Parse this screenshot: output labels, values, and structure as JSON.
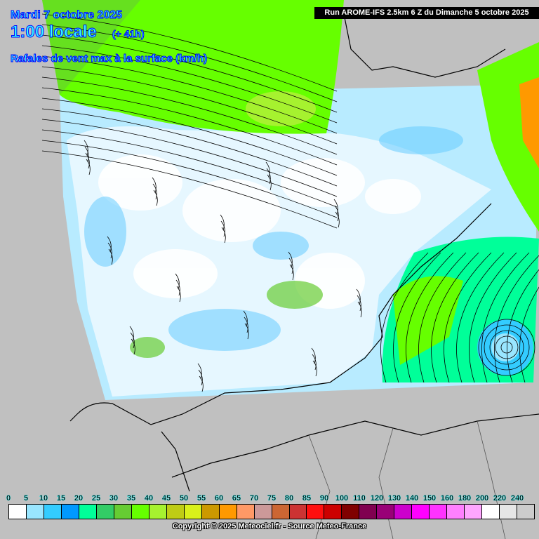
{
  "header": {
    "date": "Mardi 7 octobre 2025",
    "time": "1:00 locale",
    "lead": "(+ 41h)",
    "parameter": "Rafales de vent max à la surface (km/h)",
    "run": "Run AROME-IFS 2.5km 6 Z du Dimanche 5 octobre 2025"
  },
  "legend": {
    "labels": [
      "0",
      "5",
      "10",
      "15",
      "20",
      "25",
      "30",
      "35",
      "40",
      "45",
      "50",
      "55",
      "60",
      "65",
      "70",
      "75",
      "80",
      "85",
      "90",
      "100",
      "110",
      "120",
      "130",
      "140",
      "150",
      "160",
      "180",
      "200",
      "220",
      "240"
    ],
    "colors": [
      "#ffffff",
      "#99e6ff",
      "#33ccff",
      "#0099ff",
      "#00ff99",
      "#33cc66",
      "#66cc33",
      "#66ff00",
      "#a6f22f",
      "#bfcc14",
      "#d9f01a",
      "#cc9900",
      "#ff9900",
      "#ff9966",
      "#cc9999",
      "#cc6633",
      "#cc3333",
      "#ff0f0f",
      "#cc0000",
      "#800000",
      "#800050",
      "#990077",
      "#cc00cc",
      "#ff00ff",
      "#ff33ff",
      "#ff80ff",
      "#ffa6ff",
      "#ffffff",
      "#e6e6e6",
      "#cccccc"
    ]
  },
  "footer": {
    "copyright": "Copyright © 2025 Meteociel.fr - Source Meteo-France"
  }
}
